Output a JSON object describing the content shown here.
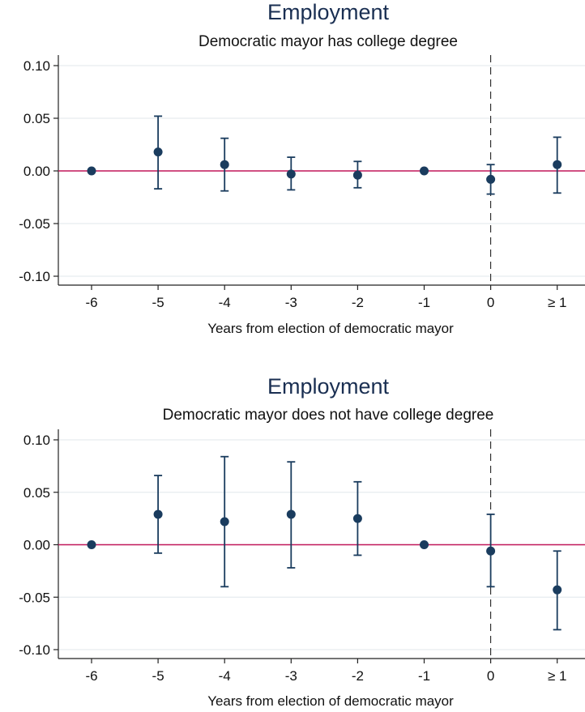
{
  "chart_data": [
    {
      "type": "scatter",
      "title": "Employment",
      "subtitle": "Democratic mayor has college degree",
      "xlabel": "Years from election of democratic mayor",
      "ylabel": "",
      "categories": [
        "-6",
        "-5",
        "-4",
        "-3",
        "-2",
        "-1",
        "0",
        "≥ 1"
      ],
      "y_ticks": [
        "0.10",
        "0.05",
        "0.00",
        "-0.05",
        "-0.10"
      ],
      "y_tick_values": [
        0.1,
        0.05,
        0.0,
        -0.05,
        -0.1
      ],
      "ylim": [
        -0.1,
        0.1
      ],
      "estimates": [
        0.0,
        0.018,
        0.006,
        -0.003,
        -0.004,
        0.0,
        -0.008,
        0.006
      ],
      "ci_low": [
        null,
        -0.017,
        -0.019,
        -0.018,
        -0.016,
        null,
        -0.022,
        -0.021
      ],
      "ci_high": [
        null,
        0.052,
        0.031,
        0.013,
        0.009,
        null,
        0.006,
        0.032
      ],
      "reference_line_y": 0,
      "event_line_x": "0",
      "grid": true,
      "colors": {
        "points": "#1a3c5e",
        "reference": "#c2185b",
        "grid": "#e6ecef",
        "title": "#1a2f52"
      }
    },
    {
      "type": "scatter",
      "title": "Employment",
      "subtitle": "Democratic mayor does not have college degree",
      "xlabel": "Years from election of democratic mayor",
      "ylabel": "",
      "categories": [
        "-6",
        "-5",
        "-4",
        "-3",
        "-2",
        "-1",
        "0",
        "≥ 1"
      ],
      "y_ticks": [
        "0.10",
        "0.05",
        "0.00",
        "-0.05",
        "-0.10"
      ],
      "y_tick_values": [
        0.1,
        0.05,
        0.0,
        -0.05,
        -0.1
      ],
      "ylim": [
        -0.1,
        0.1
      ],
      "estimates": [
        0.0,
        0.029,
        0.022,
        0.029,
        0.025,
        0.0,
        -0.006,
        -0.043
      ],
      "ci_low": [
        null,
        -0.008,
        -0.04,
        -0.022,
        -0.01,
        null,
        -0.04,
        -0.081
      ],
      "ci_high": [
        null,
        0.066,
        0.084,
        0.079,
        0.06,
        null,
        0.029,
        -0.006
      ],
      "reference_line_y": 0,
      "event_line_x": "0",
      "grid": true,
      "colors": {
        "points": "#1a3c5e",
        "reference": "#c2185b",
        "grid": "#e6ecef",
        "title": "#1a2f52"
      }
    }
  ]
}
